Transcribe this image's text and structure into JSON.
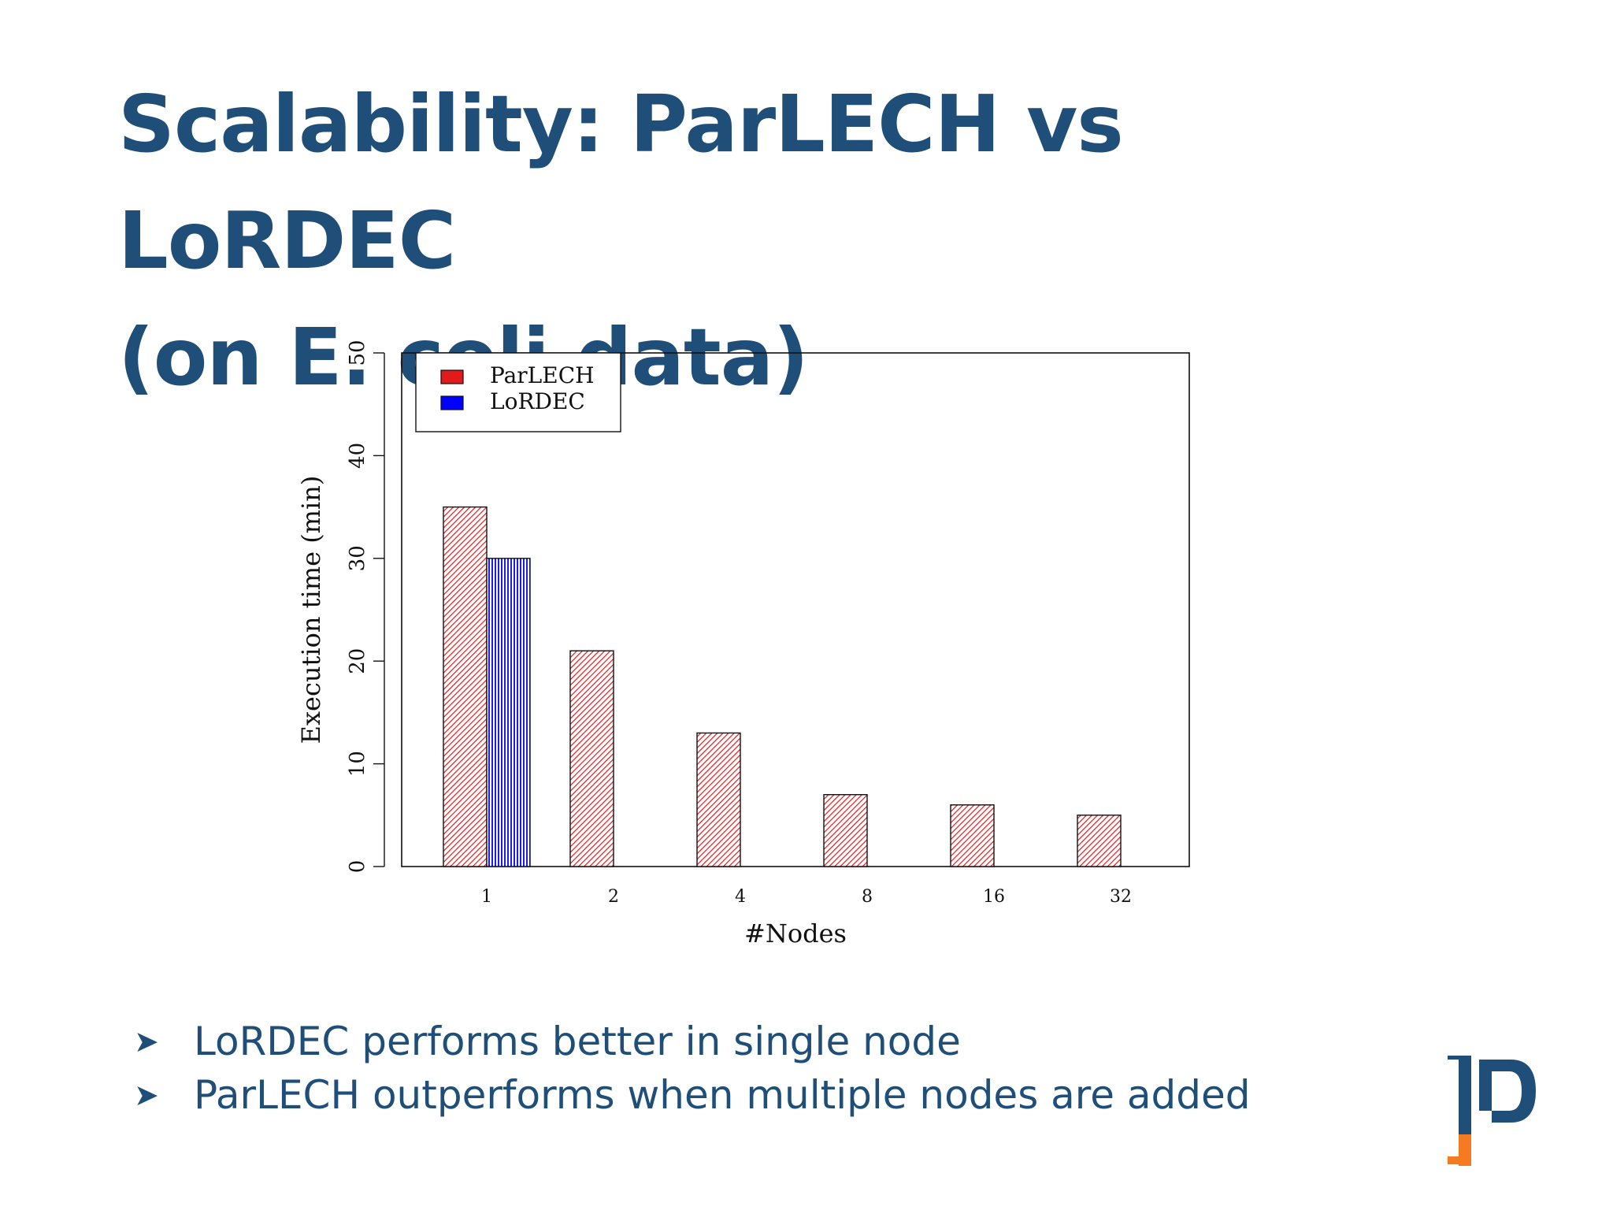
{
  "title": {
    "line1": "Scalability: ParLECH vs LoRDEC",
    "line2": "(on E. coli data)",
    "color": "#1f4e79"
  },
  "chart_data": {
    "type": "bar",
    "categories": [
      "1",
      "2",
      "4",
      "8",
      "16",
      "32"
    ],
    "series": [
      {
        "name": "ParLECH",
        "values": [
          35,
          21,
          13,
          7,
          6,
          5
        ],
        "color": "#e31a1c"
      },
      {
        "name": "LoRDEC",
        "values": [
          30,
          null,
          null,
          null,
          null,
          null
        ],
        "color": "#0000ff"
      }
    ],
    "xlabel": "#Nodes",
    "ylabel": "Execution time (min)",
    "ylim": [
      0,
      50
    ],
    "yticks": [
      "0",
      "10",
      "20",
      "30",
      "40",
      "50"
    ],
    "legend": "top-left",
    "grid": false,
    "fill": "hatched"
  },
  "bullets": [
    {
      "icon": "arrowhead-bullet-icon",
      "text": "LoRDEC performs better in single node"
    },
    {
      "icon": "arrowhead-bullet-icon",
      "text": "ParLECH outperforms when multiple nodes are added"
    }
  ],
  "logo": {
    "icon": "institution-logo-icon",
    "colors": [
      "#1f4e79",
      "#f47b20"
    ]
  }
}
